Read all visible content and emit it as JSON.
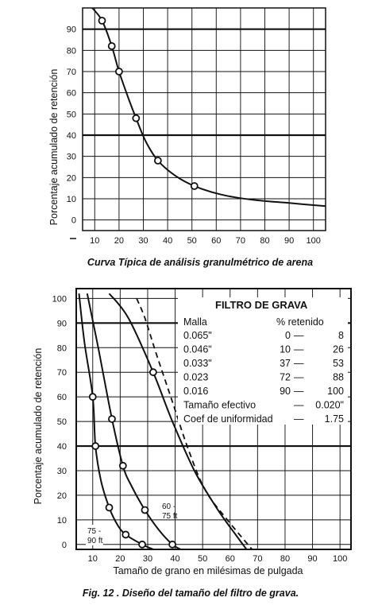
{
  "chart_data": [
    {
      "type": "line",
      "caption": "Curva Típica de análisis granulmétrico de arena",
      "ylabel": "Porcentaje acumulado de retención",
      "xlabel": "",
      "xlim": [
        5,
        105
      ],
      "ylim": [
        -5,
        100
      ],
      "x_ticks": [
        "10",
        "20",
        "30",
        "40",
        "50",
        "60",
        "70",
        "80",
        "90",
        "100"
      ],
      "y_ticks": [
        "0",
        "10",
        "20",
        "30",
        "40",
        "50",
        "60",
        "70",
        "80",
        "90"
      ],
      "grid": true,
      "series": [
        {
          "points": [
            {
              "x": 13,
              "y": 94
            },
            {
              "x": 17,
              "y": 82
            },
            {
              "x": 20,
              "y": 70
            },
            {
              "x": 27,
              "y": 48
            },
            {
              "x": 36,
              "y": 28
            },
            {
              "x": 51,
              "y": 16
            }
          ],
          "curve": [
            {
              "x": 9,
              "y": 100
            },
            {
              "x": 13,
              "y": 94
            },
            {
              "x": 17,
              "y": 82
            },
            {
              "x": 20,
              "y": 70
            },
            {
              "x": 24,
              "y": 57
            },
            {
              "x": 27,
              "y": 48
            },
            {
              "x": 31,
              "y": 37
            },
            {
              "x": 36,
              "y": 28
            },
            {
              "x": 43,
              "y": 21
            },
            {
              "x": 51,
              "y": 16
            },
            {
              "x": 62,
              "y": 12
            },
            {
              "x": 75,
              "y": 9.5
            },
            {
              "x": 90,
              "y": 8
            },
            {
              "x": 105,
              "y": 6.5
            }
          ]
        }
      ]
    },
    {
      "type": "line",
      "caption": "Fig. 12 .  Diseño del tamaño del filtro de grava.",
      "ylabel": "Porcentaje acumulado de retención",
      "xlabel": "Tamaño de grano en milésimas de pulgada",
      "xlim": [
        4,
        104
      ],
      "ylim": [
        -2,
        104
      ],
      "x_ticks": [
        "10",
        "20",
        "30",
        "40",
        "50",
        "60",
        "70",
        "80",
        "90",
        "100"
      ],
      "y_ticks": [
        "0",
        "10",
        "20",
        "30",
        "40",
        "50",
        "60",
        "70",
        "80",
        "90",
        "100"
      ],
      "grid": true,
      "series": [
        {
          "points": [
            {
              "x": 10,
              "y": 60
            },
            {
              "x": 11,
              "y": 40
            },
            {
              "x": 16,
              "y": 15
            },
            {
              "x": 22,
              "y": 4
            },
            {
              "x": 28,
              "y": 0
            }
          ],
          "curve": [
            {
              "x": 5,
              "y": 102
            },
            {
              "x": 7,
              "y": 82
            },
            {
              "x": 10,
              "y": 60
            },
            {
              "x": 11,
              "y": 40
            },
            {
              "x": 13,
              "y": 26
            },
            {
              "x": 16,
              "y": 15
            },
            {
              "x": 19,
              "y": 8
            },
            {
              "x": 22,
              "y": 4
            },
            {
              "x": 28,
              "y": 0
            },
            {
              "x": 32,
              "y": -2
            }
          ]
        },
        {
          "label": "60 - 75 ft",
          "points": [
            {
              "x": 17,
              "y": 51
            },
            {
              "x": 21,
              "y": 32
            },
            {
              "x": 29,
              "y": 14
            },
            {
              "x": 39,
              "y": 0
            }
          ],
          "curve": [
            {
              "x": 8,
              "y": 102
            },
            {
              "x": 12,
              "y": 80
            },
            {
              "x": 17,
              "y": 51
            },
            {
              "x": 21,
              "y": 32
            },
            {
              "x": 24,
              "y": 24
            },
            {
              "x": 29,
              "y": 14
            },
            {
              "x": 34,
              "y": 6
            },
            {
              "x": 39,
              "y": 0
            },
            {
              "x": 42,
              "y": -2
            }
          ]
        },
        {
          "points": [
            {
              "x": 32,
              "y": 70
            }
          ],
          "curve": [
            {
              "x": 16,
              "y": 102
            },
            {
              "x": 23,
              "y": 92
            },
            {
              "x": 32,
              "y": 70
            },
            {
              "x": 39,
              "y": 50
            },
            {
              "x": 47,
              "y": 30
            },
            {
              "x": 55,
              "y": 15
            },
            {
              "x": 62,
              "y": 4
            },
            {
              "x": 66,
              "y": -2
            }
          ]
        },
        {
          "style": "dashed",
          "curve": [
            {
              "x": 26,
              "y": 100
            },
            {
              "x": 29,
              "y": 92
            },
            {
              "x": 33,
              "y": 78
            },
            {
              "x": 39,
              "y": 58
            },
            {
              "x": 45,
              "y": 38
            },
            {
              "x": 51,
              "y": 22
            },
            {
              "x": 59,
              "y": 10
            },
            {
              "x": 68,
              "y": -2
            }
          ]
        }
      ],
      "annotations": {
        "label_60_75_line1": "60 -",
        "label_60_75_line2": "75 ft",
        "label_75_90_line1": "75 -",
        "label_75_90_line2": "90 ft"
      },
      "table": {
        "title": "FILTRO DE GRAVA",
        "col1_header": "Malla",
        "col2_header": "% retenido",
        "rows": [
          {
            "malla": "0.065\"",
            "lo": "0",
            "hi": "8"
          },
          {
            "malla": "0.046\"",
            "lo": "10",
            "hi": "26"
          },
          {
            "malla": "0.033\"",
            "lo": "37",
            "hi": "53"
          },
          {
            "malla": "0.023",
            "lo": "72",
            "hi": "88"
          },
          {
            "malla": "0.016",
            "lo": "90",
            "hi": "100"
          }
        ],
        "extra": [
          {
            "label": "Tamaño efectivo",
            "value": "0.020\""
          },
          {
            "label": "Coef de uniformidad",
            "value": "1.75"
          }
        ]
      }
    }
  ]
}
